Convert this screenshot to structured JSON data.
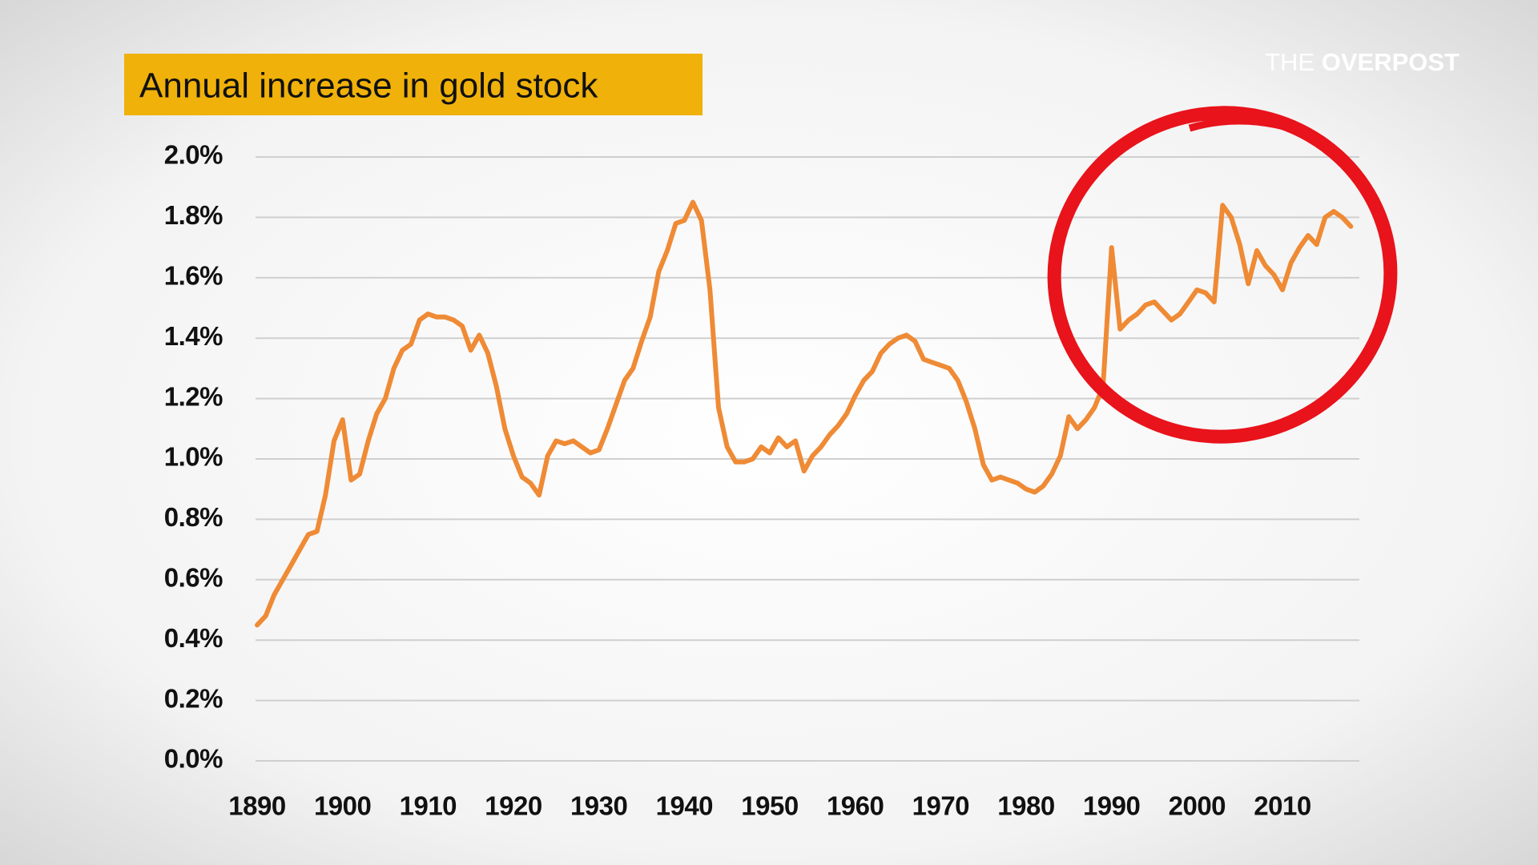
{
  "chart_data": {
    "type": "line",
    "title": "Annual increase in gold stock",
    "brand": {
      "prefix": "THE",
      "name": "OVERPOST"
    },
    "x": [
      1890,
      1891,
      1892,
      1893,
      1894,
      1895,
      1896,
      1897,
      1898,
      1899,
      1900,
      1901,
      1902,
      1903,
      1904,
      1905,
      1906,
      1907,
      1908,
      1909,
      1910,
      1911,
      1912,
      1913,
      1914,
      1915,
      1916,
      1917,
      1918,
      1919,
      1920,
      1921,
      1922,
      1923,
      1924,
      1925,
      1926,
      1927,
      1928,
      1929,
      1930,
      1931,
      1932,
      1933,
      1934,
      1935,
      1936,
      1937,
      1938,
      1939,
      1940,
      1941,
      1942,
      1943,
      1944,
      1945,
      1946,
      1947,
      1948,
      1949,
      1950,
      1951,
      1952,
      1953,
      1954,
      1955,
      1956,
      1957,
      1958,
      1959,
      1960,
      1961,
      1962,
      1963,
      1964,
      1965,
      1966,
      1967,
      1968,
      1969,
      1970,
      1971,
      1972,
      1973,
      1974,
      1975,
      1976,
      1977,
      1978,
      1979,
      1980,
      1981,
      1982,
      1983,
      1984,
      1985,
      1986,
      1987,
      1988,
      1989,
      1990,
      1991,
      1992,
      1993,
      1994,
      1995,
      1996,
      1997,
      1998,
      1999,
      2000,
      2001,
      2002,
      2003,
      2004,
      2005,
      2006,
      2007,
      2008,
      2009,
      2010,
      2011,
      2012,
      2013,
      2014,
      2015,
      2016,
      2017,
      2018
    ],
    "values": [
      0.45,
      0.48,
      0.55,
      0.6,
      0.65,
      0.7,
      0.75,
      0.76,
      0.88,
      1.06,
      1.13,
      0.93,
      0.95,
      1.06,
      1.15,
      1.2,
      1.3,
      1.36,
      1.38,
      1.46,
      1.48,
      1.47,
      1.47,
      1.46,
      1.44,
      1.36,
      1.41,
      1.35,
      1.24,
      1.1,
      1.01,
      0.94,
      0.92,
      0.88,
      1.01,
      1.06,
      1.05,
      1.06,
      1.04,
      1.02,
      1.03,
      1.1,
      1.18,
      1.26,
      1.3,
      1.39,
      1.47,
      1.62,
      1.69,
      1.78,
      1.79,
      1.85,
      1.79,
      1.56,
      1.17,
      1.04,
      0.99,
      0.99,
      1.0,
      1.04,
      1.02,
      1.07,
      1.04,
      1.06,
      0.96,
      1.01,
      1.04,
      1.08,
      1.11,
      1.15,
      1.21,
      1.26,
      1.29,
      1.35,
      1.38,
      1.4,
      1.41,
      1.39,
      1.33,
      1.32,
      1.31,
      1.3,
      1.26,
      1.19,
      1.1,
      0.98,
      0.93,
      0.94,
      0.93,
      0.92,
      0.9,
      0.89,
      0.91,
      0.95,
      1.01,
      1.14,
      1.1,
      1.13,
      1.17,
      1.24,
      1.7,
      1.43,
      1.46,
      1.48,
      1.51,
      1.52,
      1.49,
      1.46,
      1.48,
      1.52,
      1.56,
      1.55,
      1.52,
      1.84,
      1.8,
      1.71,
      1.58,
      1.69,
      1.64,
      1.61,
      1.56,
      1.65,
      1.7,
      1.74,
      1.71,
      1.8,
      1.82,
      1.8,
      1.77
    ],
    "color": "#ef8a35",
    "xlim": [
      1890,
      2019
    ],
    "xticks": [
      1890,
      1900,
      1910,
      1920,
      1930,
      1940,
      1950,
      1960,
      1970,
      1980,
      1990,
      2000,
      2010
    ],
    "ylim": [
      0,
      2.0
    ],
    "yticks": [
      {
        "value": 0,
        "label": "0.0%"
      },
      {
        "value": 0.2,
        "label": "0.2%"
      },
      {
        "value": 0.4,
        "label": "0.4%"
      },
      {
        "value": 0.6,
        "label": "0.6%"
      },
      {
        "value": 0.8,
        "label": "0.8%"
      },
      {
        "value": 1.0,
        "label": "1.0%"
      },
      {
        "value": 1.2,
        "label": "1.2%"
      },
      {
        "value": 1.4,
        "label": "1.4%"
      },
      {
        "value": 1.6,
        "label": "1.6%"
      },
      {
        "value": 1.8,
        "label": "1.8%"
      },
      {
        "value": 2.0,
        "label": "2.0%"
      }
    ],
    "grid": true
  }
}
